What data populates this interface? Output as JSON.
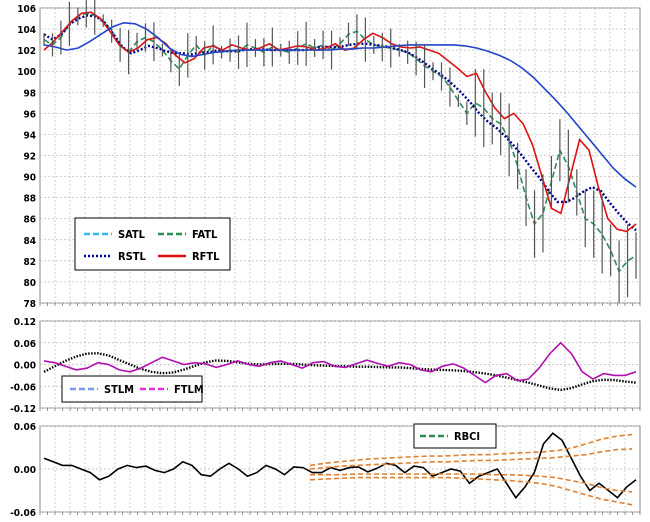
{
  "chart_data": [
    {
      "type": "line",
      "panel": "price",
      "ylim": [
        78,
        106
      ],
      "yticks": [
        "106",
        "104",
        "102",
        "100",
        "98",
        "96",
        "94",
        "92",
        "90",
        "88",
        "86",
        "84",
        "82",
        "80",
        "78"
      ],
      "grid": true,
      "legend_position": "bottom-left",
      "legend": [
        "SATL",
        "FATL",
        "RSTL",
        "RFTL"
      ],
      "x_count": 100,
      "series": [
        {
          "name": "SATL",
          "color": "#33bbee",
          "style": "dash"
        },
        {
          "name": "FATL",
          "color": "#2e8b57",
          "style": "dash",
          "values": [
            103.0,
            102.5,
            103.2,
            104.5,
            105.2,
            105.5,
            105.3,
            104.8,
            103.8,
            102.5,
            101.8,
            102.8,
            103.2,
            102.8,
            102.0,
            101.0,
            100.2,
            101.5,
            102.5,
            101.5,
            102.5,
            101.8,
            102.0,
            101.8,
            102.5,
            102.2,
            101.8,
            102.3,
            102.0,
            101.8,
            102.2,
            102.6,
            102.2,
            102.5,
            102.0,
            102.6,
            103.5,
            103.8,
            103.0,
            102.5,
            102.3,
            102.2,
            102.0,
            101.8,
            101.2,
            100.5,
            100.0,
            99.5,
            98.5,
            97.2,
            96.0,
            97.0,
            96.5,
            95.5,
            95.0,
            93.5,
            91.0,
            88.0,
            85.5,
            86.5,
            89.5,
            92.5,
            91.0,
            88.5,
            86.0,
            85.5,
            84.5,
            83.0,
            81.0,
            82.0,
            82.5
          ]
        },
        {
          "name": "RSTL",
          "color": "#00008b",
          "style": "dot",
          "values": [
            103.5,
            103.0,
            103.5,
            104.5,
            105.0,
            105.3,
            105.2,
            104.6,
            103.5,
            102.3,
            101.7,
            102.0,
            102.4,
            102.2,
            101.9,
            101.7,
            101.7,
            101.6,
            101.8,
            101.8,
            102.0,
            101.9,
            101.9,
            102.0,
            102.1,
            102.1,
            102.0,
            102.0,
            102.0,
            102.0,
            102.0,
            102.2,
            102.3,
            102.3,
            102.3,
            102.5,
            102.6,
            102.6,
            102.5,
            102.4,
            102.2,
            102.0,
            101.7,
            101.2,
            100.6,
            100.0,
            99.4,
            98.7,
            97.9,
            97.0,
            96.0,
            95.2,
            94.6,
            93.8,
            92.9,
            91.9,
            90.8,
            89.8,
            88.6,
            87.6,
            87.6,
            88.0,
            88.6,
            89.0,
            88.6,
            87.5,
            86.5,
            85.6,
            84.9
          ]
        },
        {
          "name": "RFTL",
          "color": "#dd1111",
          "style": "solid",
          "values": [
            102.0,
            102.8,
            103.8,
            104.8,
            105.5,
            105.6,
            105.0,
            103.8,
            102.5,
            101.8,
            102.2,
            103.0,
            103.2,
            102.6,
            101.5,
            100.8,
            101.2,
            102.2,
            102.4,
            102.0,
            102.5,
            102.2,
            102.0,
            102.2,
            102.6,
            102.0,
            102.2,
            102.4,
            102.3,
            102.0,
            102.2,
            102.6,
            102.0,
            102.2,
            103.0,
            103.6,
            103.2,
            102.6,
            102.3,
            102.2,
            102.3,
            102.0,
            101.7,
            101.0,
            100.3,
            99.5,
            99.8,
            98.0,
            96.5,
            95.5,
            96.0,
            95.0,
            93.0,
            90.0,
            87.0,
            86.5,
            90.0,
            93.5,
            92.5,
            89.0,
            86.0,
            85.0,
            84.8,
            85.5
          ]
        },
        {
          "name": "",
          "color": "#2244cc",
          "style": "solid",
          "values": [
            102.5,
            102.3,
            102.0,
            102.2,
            102.8,
            103.5,
            104.2,
            104.6,
            104.5,
            104.0,
            103.2,
            102.2,
            101.6,
            101.4,
            101.6,
            101.8,
            101.9,
            102.0,
            102.0,
            102.0,
            102.0,
            102.0,
            102.0,
            102.0,
            102.0,
            102.0,
            102.1,
            102.1,
            102.2,
            102.2,
            102.3,
            102.4,
            102.5,
            102.5,
            102.5,
            102.5,
            102.5,
            102.4,
            102.2,
            101.9,
            101.5,
            101.0,
            100.3,
            99.4,
            98.3,
            97.2,
            96.0,
            94.7,
            93.4,
            92.1,
            90.8,
            89.8,
            89.0
          ]
        }
      ]
    },
    {
      "type": "line",
      "panel": "oscillator",
      "ylim": [
        -0.12,
        0.12
      ],
      "yticks": [
        "0.12",
        "0.06",
        "0.00",
        "-0.06",
        "-0.12"
      ],
      "grid": true,
      "legend_position": "bottom-left",
      "legend": [
        "STLM",
        "FTLM"
      ],
      "series": [
        {
          "name": "STLM",
          "color": "#000000",
          "style": "dotted",
          "values": [
            -0.02,
            -0.005,
            0.01,
            0.022,
            0.03,
            0.031,
            0.025,
            0.012,
            0.0,
            -0.012,
            -0.02,
            -0.024,
            -0.022,
            -0.014,
            -0.004,
            0.006,
            0.011,
            0.01,
            0.006,
            0.002,
            0.0,
            0.001,
            0.002,
            0.002,
            0.0,
            -0.002,
            -0.003,
            -0.004,
            -0.005,
            -0.006,
            -0.006,
            -0.007,
            -0.008,
            -0.008,
            -0.01,
            -0.012,
            -0.014,
            -0.015,
            -0.016,
            -0.018,
            -0.021,
            -0.025,
            -0.03,
            -0.036,
            -0.043,
            -0.05,
            -0.058,
            -0.066,
            -0.07,
            -0.065,
            -0.055,
            -0.046,
            -0.042,
            -0.043,
            -0.047,
            -0.05
          ]
        },
        {
          "name": "FTLM",
          "color": "#b010b0",
          "style": "solid",
          "values": [
            0.01,
            0.005,
            -0.005,
            -0.015,
            -0.01,
            0.005,
            0.0,
            -0.015,
            -0.02,
            -0.01,
            0.005,
            0.02,
            0.01,
            0.0,
            0.005,
            0.002,
            -0.008,
            0.0,
            0.01,
            0.0,
            -0.005,
            0.005,
            0.01,
            0.0,
            -0.01,
            0.005,
            0.008,
            -0.005,
            -0.008,
            0.002,
            0.012,
            0.003,
            -0.005,
            0.005,
            0.0,
            -0.015,
            -0.02,
            -0.005,
            0.002,
            -0.01,
            -0.03,
            -0.05,
            -0.03,
            -0.025,
            -0.045,
            -0.04,
            -0.01,
            0.03,
            0.06,
            0.03,
            -0.02,
            -0.04,
            -0.025,
            -0.03,
            -0.03,
            -0.02
          ]
        }
      ]
    },
    {
      "type": "line",
      "panel": "rbci",
      "ylim": [
        -0.06,
        0.06
      ],
      "yticks": [
        "0.06",
        "0.00",
        "-0.06"
      ],
      "grid": true,
      "legend_position": "top-right",
      "legend": [
        "RBCI"
      ],
      "series": [
        {
          "name": "RBCI",
          "color": "#000000",
          "style": "solid",
          "values": [
            0.015,
            0.01,
            0.005,
            0.005,
            0.0,
            -0.005,
            -0.015,
            -0.01,
            0.0,
            0.005,
            0.002,
            0.004,
            -0.002,
            -0.005,
            0.0,
            0.01,
            0.005,
            -0.008,
            -0.01,
            0.0,
            0.008,
            0.0,
            -0.01,
            -0.005,
            0.005,
            0.0,
            -0.008,
            0.003,
            0.002,
            -0.005,
            -0.005,
            0.002,
            -0.002,
            0.002,
            0.003,
            -0.004,
            0.001,
            0.008,
            0.005,
            -0.005,
            0.004,
            0.002,
            -0.01,
            -0.005,
            0.0,
            -0.003,
            -0.02,
            -0.01,
            -0.005,
            0.0,
            -0.02,
            -0.04,
            -0.025,
            -0.005,
            0.035,
            0.05,
            0.04,
            0.015,
            -0.01,
            -0.03,
            -0.02,
            -0.03,
            -0.04,
            -0.025,
            -0.015
          ]
        },
        {
          "name": "",
          "color": "#e08030",
          "style": "dash",
          "values": [
            0.005,
            0.008,
            0.01,
            0.012,
            0.014,
            0.015,
            0.016,
            0.017,
            0.018,
            0.018,
            0.019,
            0.02,
            0.02,
            0.021,
            0.022,
            0.023,
            0.024,
            0.026,
            0.03,
            0.036,
            0.042,
            0.046,
            0.048
          ]
        },
        {
          "name": "",
          "color": "#e08030",
          "style": "dash",
          "values": [
            0.0,
            0.002,
            0.004,
            0.005,
            0.006,
            0.007,
            0.008,
            0.009,
            0.01,
            0.01,
            0.011,
            0.012,
            0.012,
            0.013,
            0.014,
            0.015,
            0.016,
            0.018,
            0.02,
            0.024,
            0.027,
            0.028
          ]
        },
        {
          "name": "",
          "color": "#e08030",
          "style": "dash",
          "values": [
            -0.008,
            -0.008,
            -0.008,
            -0.007,
            -0.007,
            -0.007,
            -0.007,
            -0.007,
            -0.007,
            -0.007,
            -0.007,
            -0.007,
            -0.008,
            -0.008,
            -0.009,
            -0.01,
            -0.012,
            -0.016,
            -0.02,
            -0.026,
            -0.03,
            -0.032
          ]
        },
        {
          "name": "",
          "color": "#e08030",
          "style": "dash",
          "values": [
            -0.015,
            -0.014,
            -0.013,
            -0.012,
            -0.012,
            -0.012,
            -0.012,
            -0.012,
            -0.012,
            -0.012,
            -0.013,
            -0.014,
            -0.015,
            -0.016,
            -0.018,
            -0.02,
            -0.024,
            -0.03,
            -0.036,
            -0.042,
            -0.046,
            -0.05
          ]
        }
      ]
    }
  ]
}
